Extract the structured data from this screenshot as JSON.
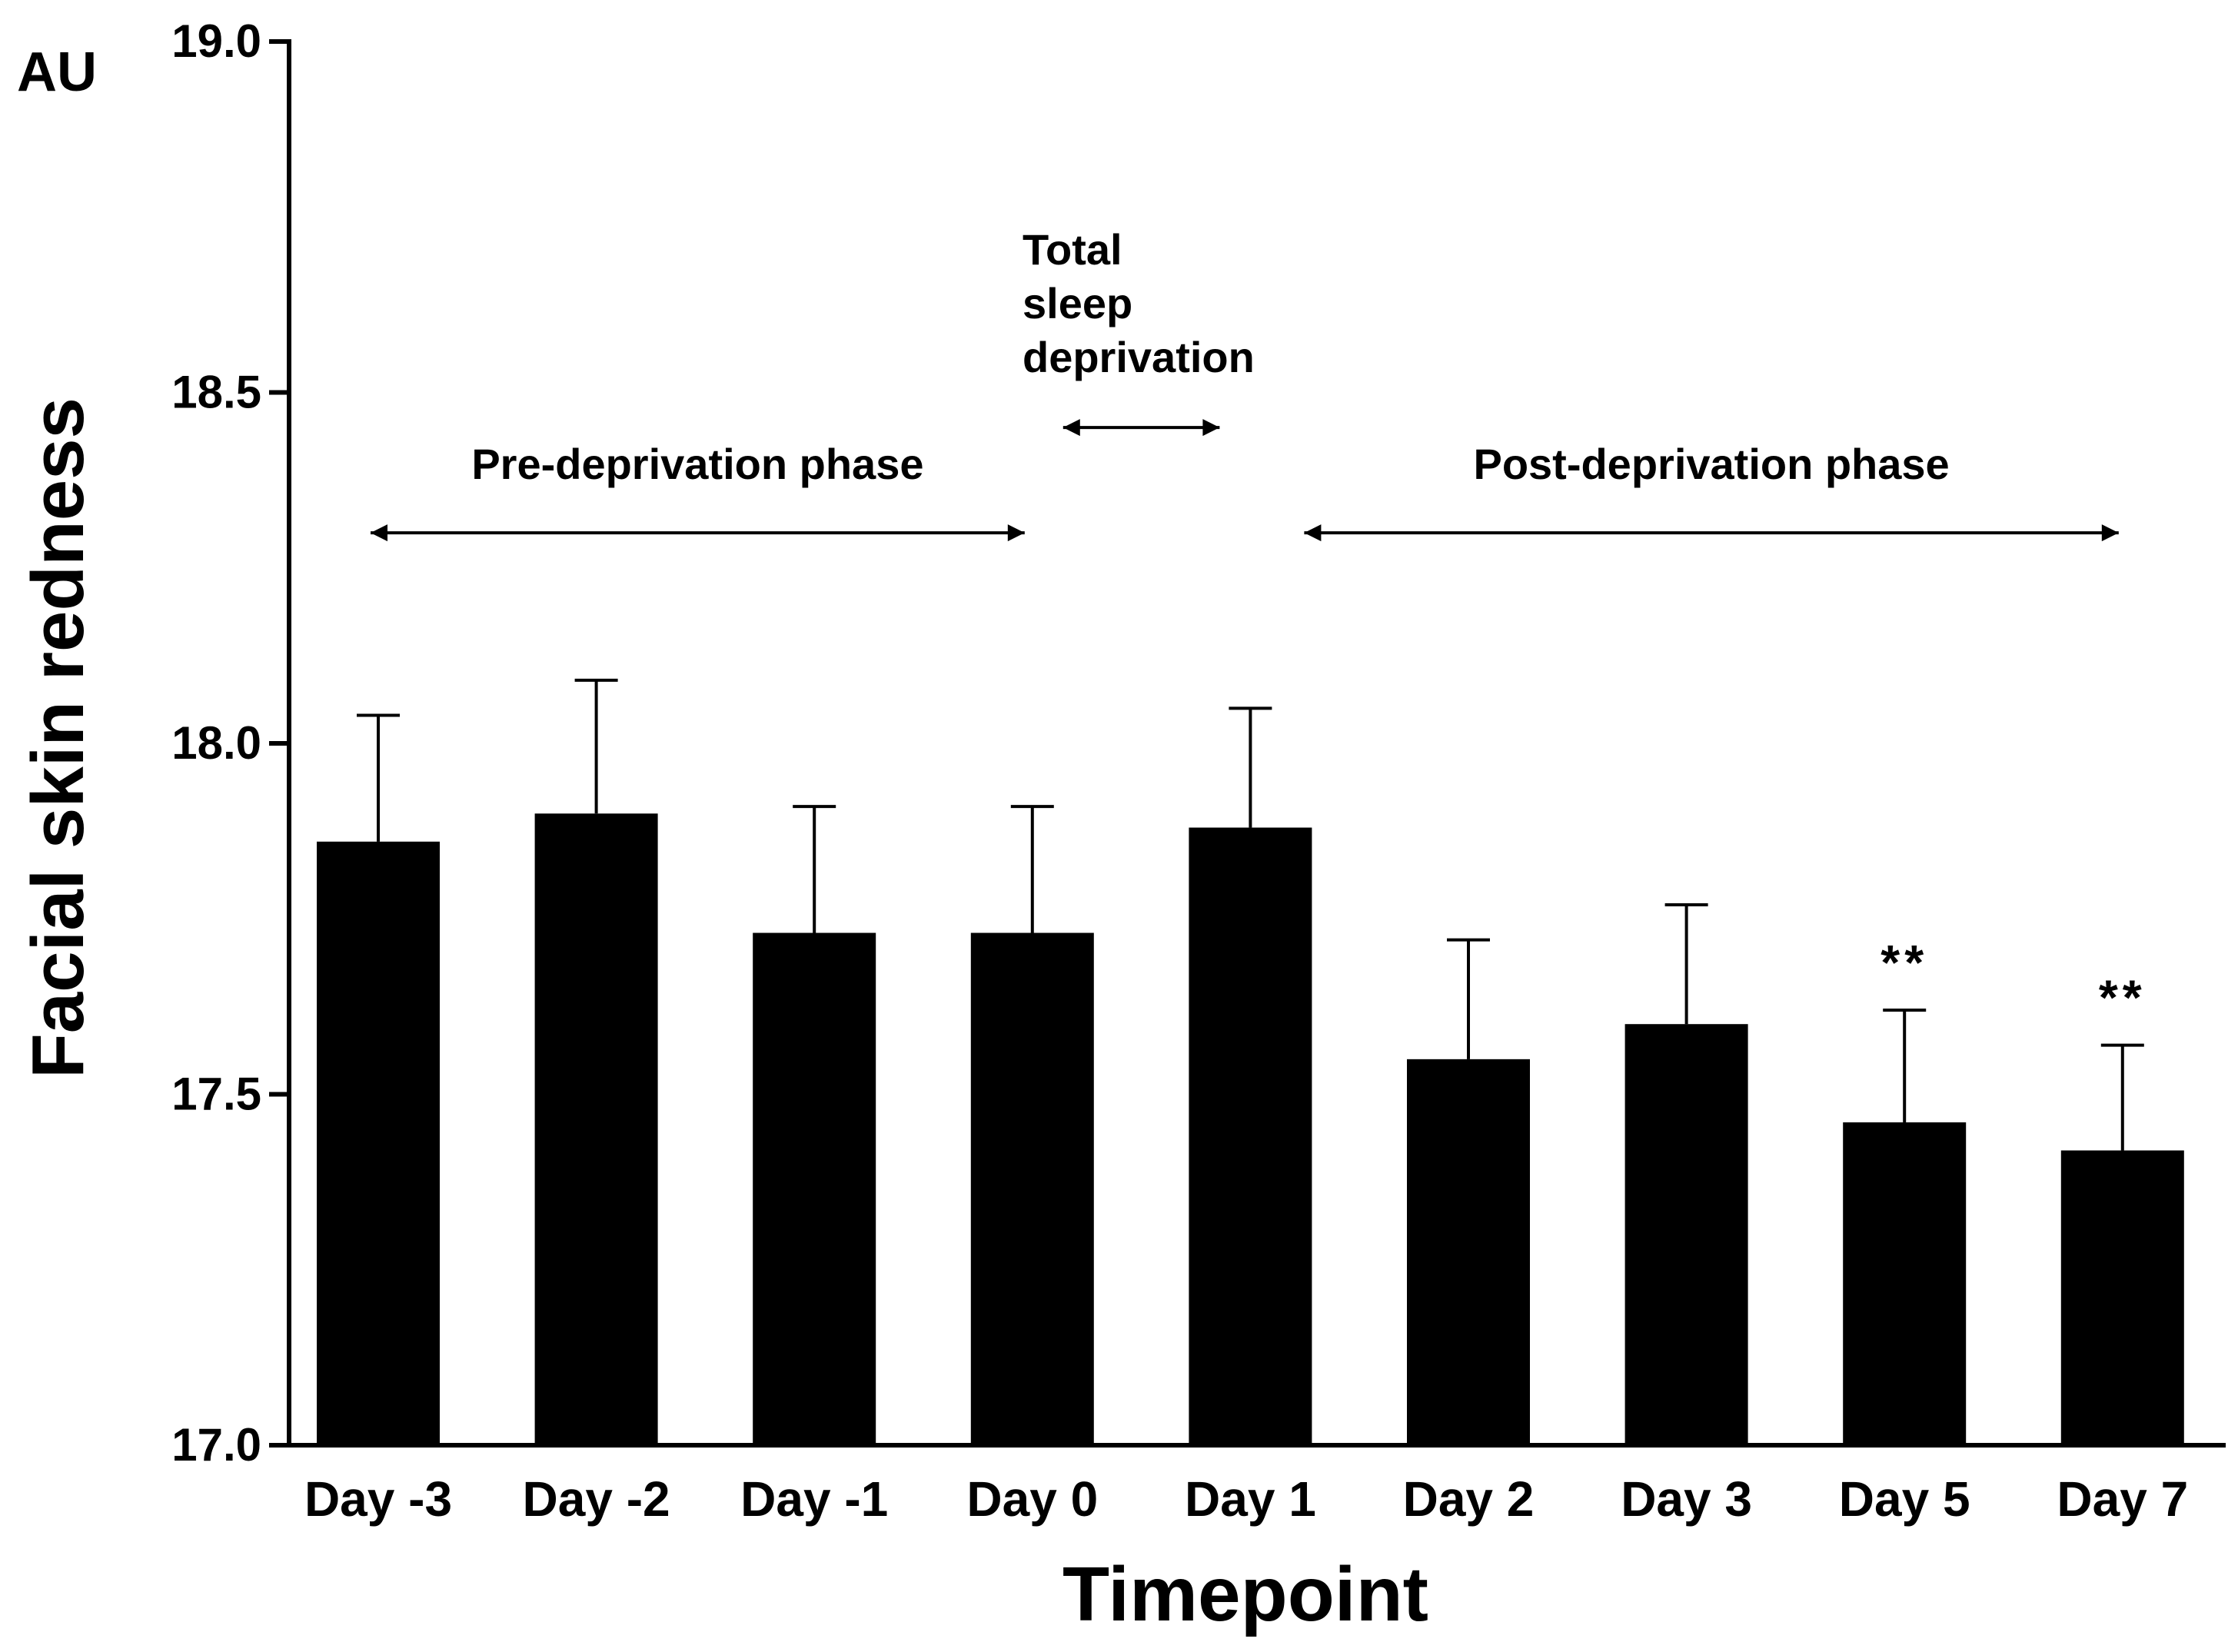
{
  "chart_data": {
    "type": "bar",
    "title": "",
    "xlabel": "Timepoint",
    "ylabel": "Facial skin redness",
    "y_unit": "AU",
    "ylim": [
      17.0,
      19.0
    ],
    "yticks": [
      17.0,
      17.5,
      18.0,
      18.5,
      19.0
    ],
    "ytick_labels": [
      "17.0",
      "17.5",
      "18.0",
      "18.5",
      "19.0"
    ],
    "categories": [
      "Day -3",
      "Day -2",
      "Day -1",
      "Day 0",
      "Day 1",
      "Day 2",
      "Day 3",
      "Day 5",
      "Day 7"
    ],
    "values": [
      17.86,
      17.9,
      17.73,
      17.73,
      17.88,
      17.55,
      17.6,
      17.46,
      17.42
    ],
    "error_upper": [
      18.04,
      18.09,
      17.91,
      17.91,
      18.05,
      17.72,
      17.77,
      17.62,
      17.57
    ],
    "bar_color": "#000000",
    "annotations": [
      {
        "category": "Day 5",
        "text": "**"
      },
      {
        "category": "Day 7",
        "text": "**"
      }
    ],
    "phases": [
      {
        "label": "Pre-deprivation phase",
        "from": "Day -3",
        "to": "Day 0",
        "y": 18.3
      },
      {
        "label_lines": [
          "Total",
          "sleep",
          "deprivation"
        ],
        "from": "Day 0",
        "to": "Day 1",
        "y": 18.45
      },
      {
        "label": "Post-deprivation phase",
        "from": "Day 1",
        "to": "Day 7",
        "y": 18.3
      }
    ]
  }
}
